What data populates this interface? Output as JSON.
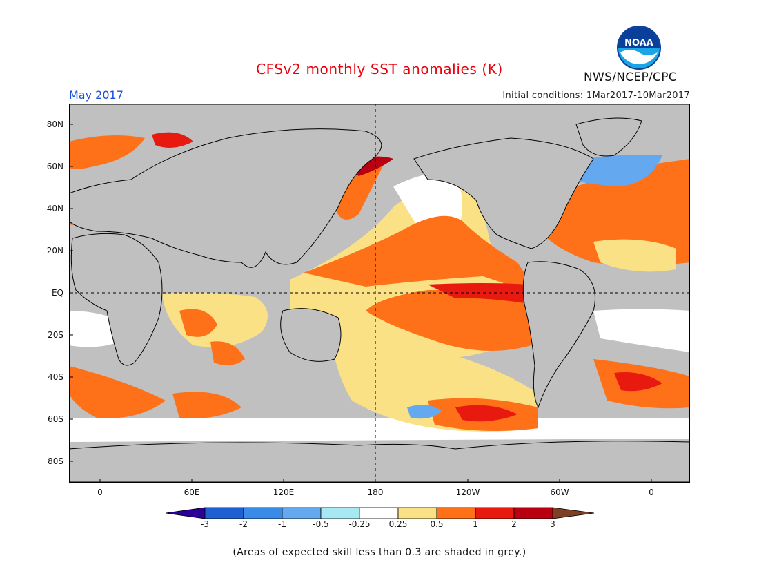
{
  "title": "CFSv2 monthly SST anomalies (K)",
  "valid_month": "May 2017",
  "initial_conditions": "Initial conditions: 1Mar2017-10Mar2017",
  "agency": "NWS/NCEP/CPC",
  "logo": {
    "text": "NOAA",
    "icon": "noaa-logo"
  },
  "footnote": "(Areas of expected skill less than 0.3 are shaded in grey.)",
  "map": {
    "lat_labels": [
      "80N",
      "60N",
      "40N",
      "20N",
      "EQ",
      "20S",
      "40S",
      "60S",
      "80S"
    ],
    "lon_labels": [
      "0",
      "60E",
      "120E",
      "180",
      "120W",
      "60W",
      "0"
    ],
    "reference_lines": [
      "equator",
      "dateline"
    ],
    "low_skill_color": "#c0c0c0",
    "land_color": "#c0c0c0"
  },
  "colorbar": {
    "tick_labels": [
      "-3",
      "-2",
      "-1",
      "-0.5",
      "-0.25",
      "0.25",
      "0.5",
      "1",
      "2",
      "3"
    ],
    "colors": [
      "#2a0098",
      "#1e5fd1",
      "#3a8ae8",
      "#64a8f0",
      "#a8e8f2",
      "#ffffff",
      "#fbe186",
      "#ff7118",
      "#e8190e",
      "#b80010",
      "#7d4027"
    ]
  },
  "colors": {
    "title": "#e8000b",
    "month": "#1a4fe0"
  }
}
